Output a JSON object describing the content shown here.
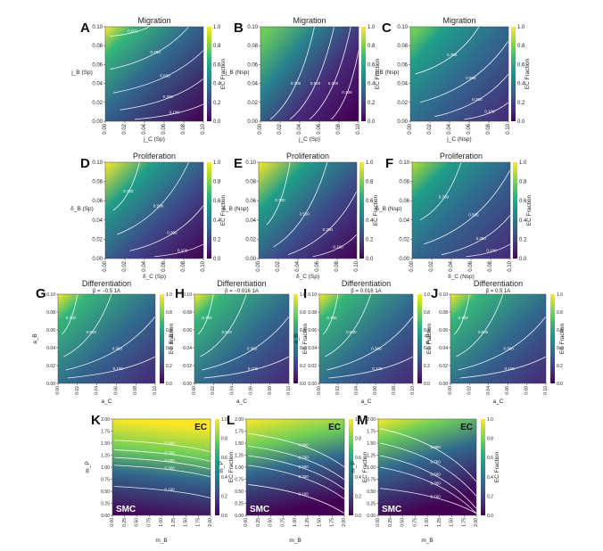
{
  "chart_data": [
    {
      "label": "A",
      "type": "heatmap",
      "title": "Migration",
      "subtitle": "",
      "xlabel": "j_C (Sp)",
      "ylabel": "j_B (Sp)",
      "xlim": [
        0,
        0.1
      ],
      "ylim": [
        0,
        0.1
      ],
      "xticks": [
        "0.00",
        "0.02",
        "0.04",
        "0.06",
        "0.08",
        "0.10"
      ],
      "yticks": [
        "0.00",
        "0.02",
        "0.04",
        "0.06",
        "0.08",
        "0.10"
      ],
      "colorbar_label": "EC Fraction",
      "colorbar_ticks": [
        "0.0",
        "0.2",
        "0.4",
        "0.6",
        "0.8",
        "1.0"
      ],
      "contour_levels": [
        "0.900",
        "0.700",
        "0.500",
        "0.300",
        "0.100"
      ],
      "corner_labels": null
    },
    {
      "label": "B",
      "type": "heatmap",
      "title": "Migration",
      "subtitle": "",
      "xlabel": "j_C (Sp)",
      "ylabel": "j_B (Nsp)",
      "xlim": [
        0,
        0.1
      ],
      "ylim": [
        0,
        0.1
      ],
      "xticks": [
        "0.00",
        "0.02",
        "0.04",
        "0.06",
        "0.08",
        "0.10"
      ],
      "yticks": [
        "0.00",
        "0.02",
        "0.04",
        "0.06",
        "0.08",
        "0.10"
      ],
      "colorbar_label": "EC Fraction",
      "colorbar_ticks": [
        "0.0",
        "0.2",
        "0.4",
        "0.6",
        "0.8",
        "1.0"
      ],
      "contour_levels": [
        "0.700",
        "0.500",
        "0.300",
        "0.100"
      ],
      "corner_labels": null
    },
    {
      "label": "C",
      "type": "heatmap",
      "title": "Migration",
      "subtitle": "",
      "xlabel": "j_C (Nsp)",
      "ylabel": "j_B (Nsp)",
      "xlim": [
        0,
        0.1
      ],
      "ylim": [
        0,
        0.1
      ],
      "xticks": [
        "0.00",
        "0.02",
        "0.04",
        "0.06",
        "0.08",
        "0.10"
      ],
      "yticks": [
        "0.00",
        "0.02",
        "0.04",
        "0.06",
        "0.08",
        "0.10"
      ],
      "colorbar_label": "EC Fraction",
      "colorbar_ticks": [
        "0.0",
        "0.2",
        "0.4",
        "0.6",
        "0.8",
        "1.0"
      ],
      "contour_levels": [
        "0.700",
        "0.500",
        "0.300",
        "0.100"
      ],
      "corner_labels": null
    },
    {
      "label": "D",
      "type": "heatmap",
      "title": "Proliferation",
      "subtitle": "",
      "xlabel": "δ_C (Sp)",
      "ylabel": "δ_B (Sp)",
      "xlim": [
        0,
        0.1
      ],
      "ylim": [
        0,
        0.1
      ],
      "xticks": [
        "0.00",
        "0.02",
        "0.04",
        "0.06",
        "0.08",
        "0.10"
      ],
      "yticks": [
        "0.00",
        "0.02",
        "0.04",
        "0.06",
        "0.08",
        "0.10"
      ],
      "colorbar_label": "EC Fraction",
      "colorbar_ticks": [
        "0.0",
        "0.2",
        "0.4",
        "0.6",
        "0.8",
        "1.0"
      ],
      "contour_levels": [
        "0.700",
        "0.500",
        "0.300",
        "0.100"
      ],
      "corner_labels": null
    },
    {
      "label": "E",
      "type": "heatmap",
      "title": "Proliferation",
      "subtitle": "",
      "xlabel": "δ_C (Sp)",
      "ylabel": "δ_B (Nsp)",
      "xlim": [
        0,
        0.1
      ],
      "ylim": [
        0,
        0.1
      ],
      "xticks": [
        "0.00",
        "0.02",
        "0.04",
        "0.06",
        "0.08",
        "0.10"
      ],
      "yticks": [
        "0.00",
        "0.02",
        "0.04",
        "0.06",
        "0.08",
        "0.10"
      ],
      "colorbar_label": "EC Fraction",
      "colorbar_ticks": [
        "0.0",
        "0.2",
        "0.4",
        "0.6",
        "0.8",
        "1.0"
      ],
      "contour_levels": [
        "0.700",
        "0.500",
        "0.300",
        "0.100"
      ],
      "corner_labels": null
    },
    {
      "label": "F",
      "type": "heatmap",
      "title": "Proliferation",
      "subtitle": "",
      "xlabel": "δ_C (Nsp)",
      "ylabel": "δ_B (Nsp)",
      "xlim": [
        0,
        0.1
      ],
      "ylim": [
        0,
        0.1
      ],
      "xticks": [
        "0.00",
        "0.02",
        "0.04",
        "0.06",
        "0.08",
        "0.10"
      ],
      "yticks": [
        "0.00",
        "0.02",
        "0.04",
        "0.06",
        "0.08",
        "0.10"
      ],
      "colorbar_label": "EC Fraction",
      "colorbar_ticks": [
        "0.0",
        "0.2",
        "0.4",
        "0.6",
        "0.8",
        "1.0"
      ],
      "contour_levels": [
        "0.700",
        "0.500",
        "0.300",
        "0.100"
      ],
      "corner_labels": null
    },
    {
      "label": "G",
      "type": "heatmap",
      "title": "Differentiation",
      "subtitle": "β = −0.5 1A",
      "xlabel": "a_C",
      "ylabel": "a_B",
      "xlim": [
        0,
        0.1
      ],
      "ylim": [
        0,
        0.1
      ],
      "xticks": [
        "0.00",
        "0.02",
        "0.04",
        "0.06",
        "0.08",
        "0.10"
      ],
      "yticks": [
        "0.00",
        "0.02",
        "0.04",
        "0.06",
        "0.08",
        "0.10"
      ],
      "colorbar_label": "EC Fraction",
      "colorbar_ticks": [
        "0.0",
        "0.2",
        "0.4",
        "0.6",
        "0.8",
        "1.0"
      ],
      "contour_levels": [
        "0.700",
        "0.500",
        "0.300",
        "0.100"
      ],
      "corner_labels": null
    },
    {
      "label": "H",
      "type": "heatmap",
      "title": "Differentiation",
      "subtitle": "β = −0.016 1A",
      "xlabel": "a_C",
      "ylabel": "a_B",
      "xlim": [
        0,
        0.1
      ],
      "ylim": [
        0,
        0.1
      ],
      "xticks": [
        "0.00",
        "0.02",
        "0.04",
        "0.06",
        "0.08",
        "0.10"
      ],
      "yticks": [
        "0.00",
        "0.02",
        "0.04",
        "0.06",
        "0.08",
        "0.10"
      ],
      "colorbar_label": "EC Fraction",
      "colorbar_ticks": [
        "0.0",
        "0.2",
        "0.4",
        "0.6",
        "0.8",
        "1.0"
      ],
      "contour_levels": [
        "0.700",
        "0.500",
        "0.300",
        "0.100"
      ],
      "corner_labels": null
    },
    {
      "label": "I",
      "type": "heatmap",
      "title": "Differentiation",
      "subtitle": "β = 0.016 1A",
      "xlabel": "a_C",
      "ylabel": "a_B",
      "xlim": [
        0,
        0.1
      ],
      "ylim": [
        0,
        0.1
      ],
      "xticks": [
        "0.00",
        "0.02",
        "0.04",
        "0.06",
        "0.08",
        "0.10"
      ],
      "yticks": [
        "0.00",
        "0.02",
        "0.04",
        "0.06",
        "0.08",
        "0.10"
      ],
      "colorbar_label": "EC Fraction",
      "colorbar_ticks": [
        "0.0",
        "0.2",
        "0.4",
        "0.6",
        "0.8",
        "1.0"
      ],
      "contour_levels": [
        "0.700",
        "0.500",
        "0.300",
        "0.100"
      ],
      "corner_labels": null
    },
    {
      "label": "J",
      "type": "heatmap",
      "title": "Differentiation",
      "subtitle": "β = 0.5 1A",
      "xlabel": "a_C",
      "ylabel": "a_B",
      "xlim": [
        0,
        0.1
      ],
      "ylim": [
        0,
        0.1
      ],
      "xticks": [
        "0.00",
        "0.02",
        "0.04",
        "0.06",
        "0.08",
        "0.10"
      ],
      "yticks": [
        "0.00",
        "0.02",
        "0.04",
        "0.06",
        "0.08",
        "0.10"
      ],
      "colorbar_label": "EC Fraction",
      "colorbar_ticks": [
        "0.0",
        "0.2",
        "0.4",
        "0.6",
        "0.8",
        "1.0"
      ],
      "contour_levels": [
        "0.700",
        "0.500",
        "0.300",
        "0.100"
      ],
      "corner_labels": null
    },
    {
      "label": "K",
      "type": "heatmap",
      "title": "",
      "subtitle": "",
      "xlabel": "m_B",
      "ylabel": "m_P",
      "xlim": [
        0,
        2.0
      ],
      "ylim": [
        0,
        2.0
      ],
      "xticks": [
        "0.00",
        "0.25",
        "0.50",
        "0.75",
        "1.00",
        "1.25",
        "1.50",
        "1.75",
        "2.00"
      ],
      "yticks": [
        "0.00",
        "0.25",
        "0.50",
        "0.75",
        "1.00",
        "1.25",
        "1.50",
        "1.75",
        "2.00"
      ],
      "colorbar_label": "EC Fraction",
      "colorbar_ticks": [
        "0.0",
        "0.2",
        "0.4",
        "0.6",
        "0.8",
        "1.0"
      ],
      "contour_levels": [
        "0.900",
        "0.700",
        "0.500",
        "0.300",
        "0.100"
      ],
      "corner_labels": {
        "top_right": "EC",
        "bottom_left": "SMC"
      }
    },
    {
      "label": "L",
      "type": "heatmap",
      "title": "",
      "subtitle": "",
      "xlabel": "m_B",
      "ylabel": "m_P",
      "xlim": [
        0,
        2.0
      ],
      "ylim": [
        0,
        2.0
      ],
      "xticks": [
        "0.00",
        "0.25",
        "0.50",
        "0.75",
        "1.00",
        "1.25",
        "1.50",
        "1.75",
        "2.00"
      ],
      "yticks": [
        "0.00",
        "0.25",
        "0.50",
        "0.75",
        "1.00",
        "1.25",
        "1.50",
        "1.75",
        "2.00"
      ],
      "colorbar_label": "EC Fraction",
      "colorbar_ticks": [
        "0.0",
        "0.2",
        "0.4",
        "0.6",
        "0.8",
        "1.0"
      ],
      "contour_levels": [
        "0.900",
        "0.700",
        "0.500",
        "0.300",
        "0.100"
      ],
      "corner_labels": {
        "top_right": "EC",
        "bottom_left": "SMC"
      }
    },
    {
      "label": "M",
      "type": "heatmap",
      "title": "",
      "subtitle": "",
      "xlabel": "m_B",
      "ylabel": "m_P",
      "xlim": [
        0,
        2.0
      ],
      "ylim": [
        0,
        2.0
      ],
      "xticks": [
        "0.00",
        "0.25",
        "0.50",
        "0.75",
        "1.00",
        "1.25",
        "1.50",
        "1.75",
        "2.00"
      ],
      "yticks": [
        "0.00",
        "0.25",
        "0.50",
        "0.75",
        "1.00",
        "1.25",
        "1.50",
        "1.75",
        "2.00"
      ],
      "colorbar_label": "EC Fraction",
      "colorbar_ticks": [
        "0.0",
        "0.2",
        "0.4",
        "0.6",
        "0.8",
        "1.0"
      ],
      "contour_levels": [
        "0.900",
        "0.700",
        "0.500",
        "0.300",
        "0.100"
      ],
      "corner_labels": {
        "top_right": "EC",
        "bottom_left": "SMC"
      }
    }
  ],
  "colormap": [
    "#440154",
    "#482878",
    "#3e4989",
    "#31688e",
    "#26828e",
    "#1f9e89",
    "#35b779",
    "#6ece58",
    "#b5de2b",
    "#fde725"
  ]
}
